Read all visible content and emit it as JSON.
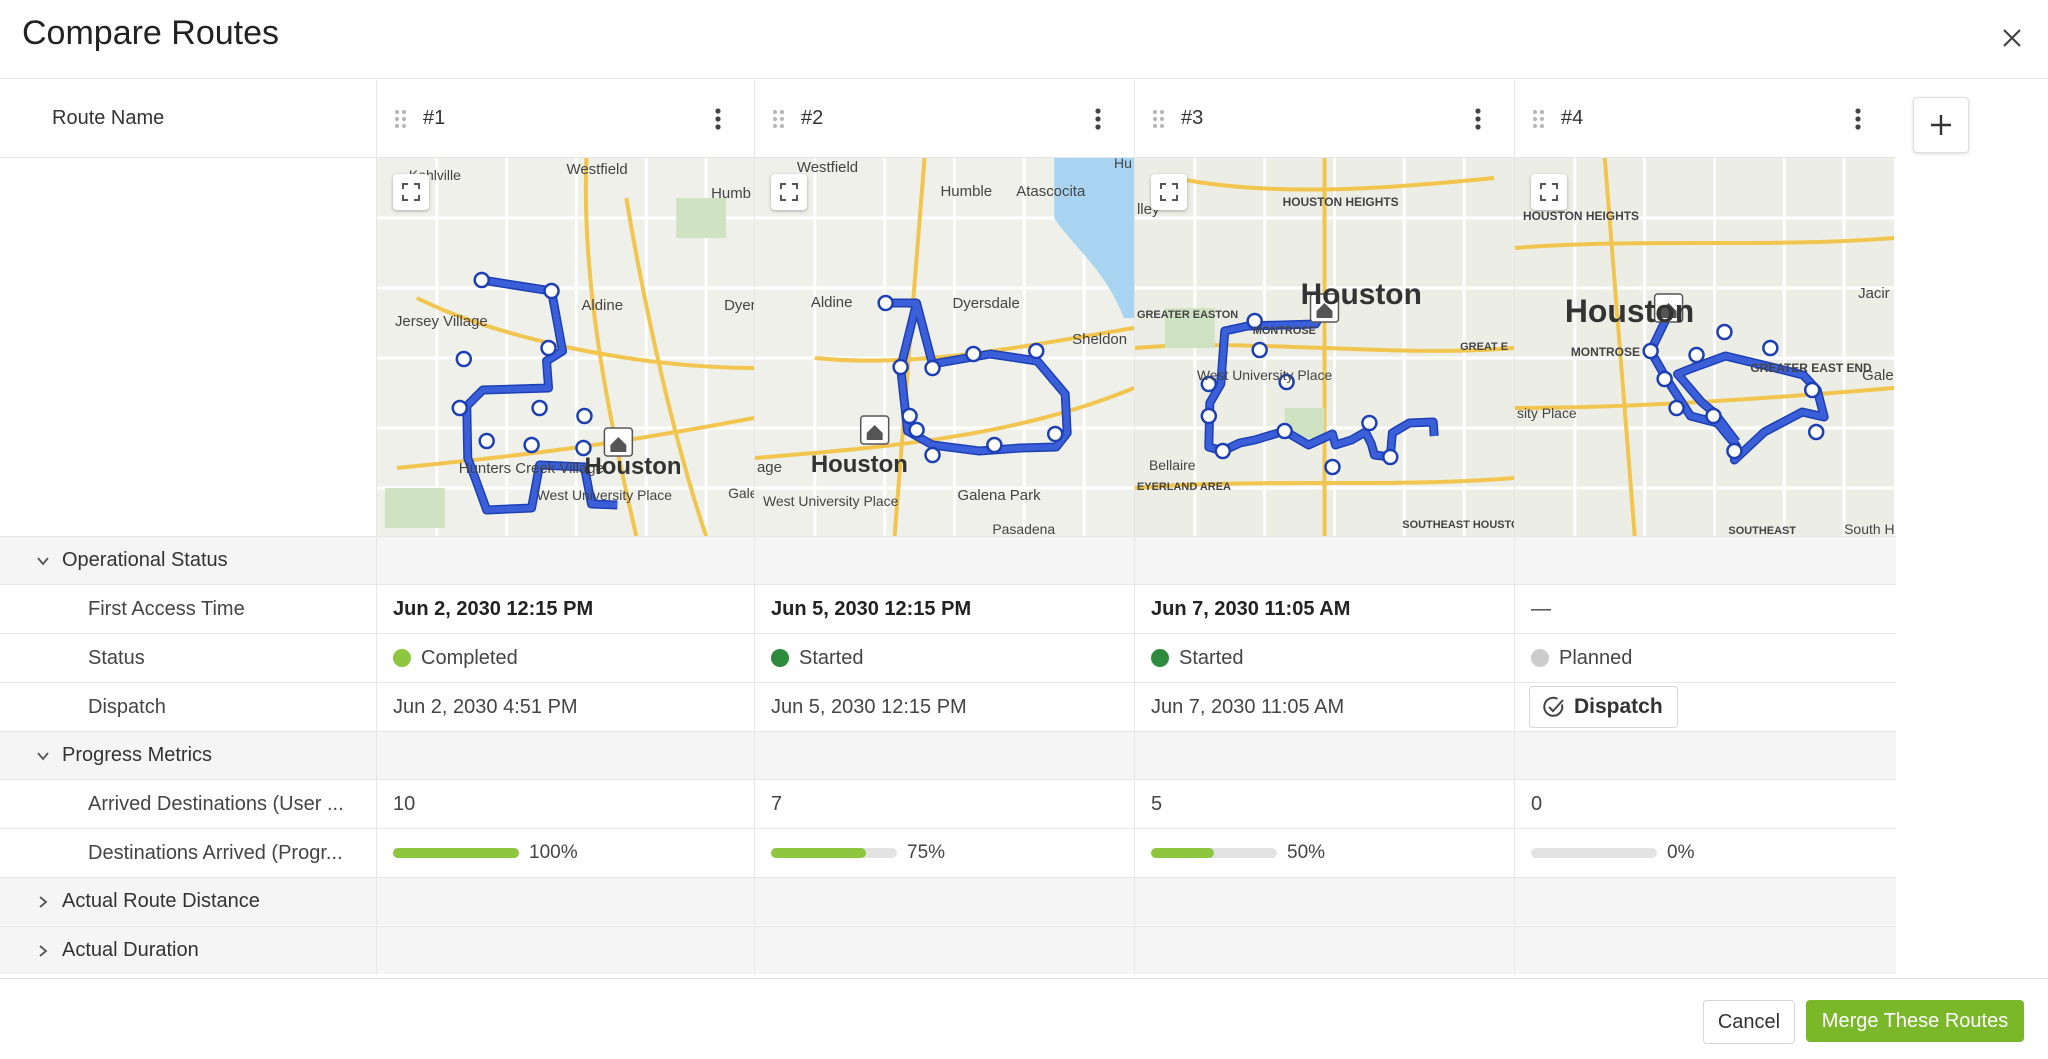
{
  "dialog": {
    "title": "Compare Routes",
    "close_icon": "close-icon"
  },
  "columns": {
    "header_label": "Route Name"
  },
  "routes": [
    {
      "name": "#1",
      "map_labels": [
        "Kohlville",
        "Westfield",
        "Humb",
        "Aldine",
        "Dyer",
        "Jersey Village",
        "Hunters Creek Village",
        "West University Place",
        "Houston",
        "Gale"
      ],
      "first_access_time": "Jun 2, 2030 12:15 PM",
      "status": "Completed",
      "status_color": "#8dc63f",
      "dispatch": "Jun 2, 2030 4:51 PM",
      "arrived_destinations": "10",
      "progress": 1.0,
      "progress_label": "100%"
    },
    {
      "name": "#2",
      "map_labels": [
        "Westfield",
        "Humble",
        "Atascocita",
        "Aldine",
        "Dyersdale",
        "Sheldon",
        "Houston",
        "West University Place",
        "Galena Park",
        "Pasadena",
        "age",
        "Hu"
      ],
      "first_access_time": "Jun 5, 2030 12:15 PM",
      "status": "Started",
      "status_color": "#2e8b3e",
      "dispatch": "Jun 5, 2030 12:15 PM",
      "arrived_destinations": "7",
      "progress": 0.75,
      "progress_label": "75%"
    },
    {
      "name": "#3",
      "map_labels": [
        "lley",
        "HOUSTON HEIGHTS",
        "Houston",
        "GREATER EASTON",
        "GREAT E",
        "West University Place",
        "Bellaire",
        "MONTROSE",
        "SOUTHEAST HOUSTON",
        "EYERLAND AREA"
      ],
      "first_access_time": "Jun 7, 2030 11:05 AM",
      "status": "Started",
      "status_color": "#2e8b3e",
      "dispatch": "Jun 7, 2030 11:05 AM",
      "arrived_destinations": "5",
      "progress": 0.5,
      "progress_label": "50%"
    },
    {
      "name": "#4",
      "map_labels": [
        "HOUSTON HEIGHTS",
        "Houston",
        "MONTROSE",
        "GREATER EAST END",
        "Jacir",
        "Gale",
        "sity Place",
        "SOUTHEAST",
        "South H"
      ],
      "first_access_time": "—",
      "status": "Planned",
      "status_color": "#cccccc",
      "dispatch_button": "Dispatch",
      "arrived_destinations": "0",
      "progress": 0,
      "progress_label": "0%"
    }
  ],
  "sections": [
    {
      "label": "Operational Status",
      "expanded": true
    },
    {
      "label": "Progress Metrics",
      "expanded": true
    },
    {
      "label": "Actual Route Distance",
      "expanded": false
    },
    {
      "label": "Actual Duration",
      "expanded": false
    }
  ],
  "fields": {
    "first_access_time": "First Access Time",
    "status": "Status",
    "dispatch": "Dispatch",
    "arrived_destinations": "Arrived Destinations (User ...",
    "destinations_arrived_progress": "Destinations Arrived (Progr..."
  },
  "footer": {
    "cancel_label": "Cancel",
    "merge_label": "Merge These Routes"
  },
  "colors": {
    "route_line": "#3b5fd9",
    "accent_green": "#7ab829",
    "progress_green": "#8dc63f"
  }
}
